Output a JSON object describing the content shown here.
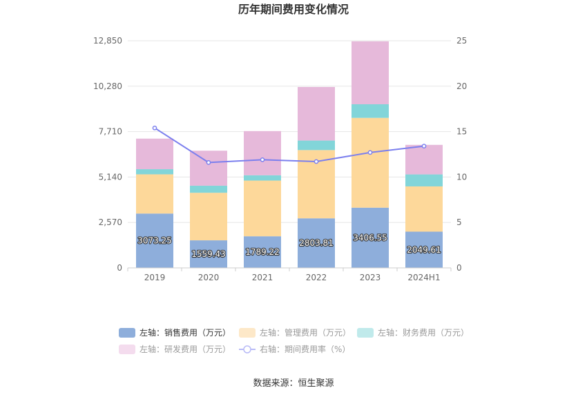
{
  "chart_data": {
    "type": "bar",
    "stacked": true,
    "title": "历年期间费用变化情况",
    "categories": [
      "2019",
      "2020",
      "2021",
      "2022",
      "2023",
      "2024H1"
    ],
    "series": [
      {
        "name": "左轴：销售费用（万元）",
        "axis": "left",
        "color": "#8eaedb",
        "values": [
          3073.25,
          1559.43,
          1789.22,
          2803.81,
          3406.55,
          2049.61
        ],
        "show_labels": true
      },
      {
        "name": "左轴：管理费用（万元）",
        "axis": "left",
        "color": "#fdd89a",
        "values": [
          2220,
          2690,
          3150,
          3860,
          5080,
          2560
        ]
      },
      {
        "name": "左轴：财务费用（万元）",
        "axis": "left",
        "color": "#82d5d9",
        "values": [
          290,
          400,
          300,
          540,
          770,
          680
        ]
      },
      {
        "name": "左轴：研发费用（万元）",
        "axis": "left",
        "color": "#e6b9da",
        "values": [
          1730,
          1980,
          2500,
          3030,
          3560,
          1670
        ]
      },
      {
        "name": "右轴：期间费用率（%）",
        "axis": "right",
        "type": "line",
        "color": "#7b7fee",
        "values": [
          15.4,
          11.6,
          11.9,
          11.7,
          12.7,
          13.4
        ]
      }
    ],
    "left_axis": {
      "ticks": [
        "0",
        "2,570",
        "5,140",
        "7,710",
        "10,280",
        "12,850"
      ],
      "ylim": [
        0,
        12850
      ]
    },
    "right_axis": {
      "ticks": [
        "0",
        "5",
        "10",
        "15",
        "20",
        "25"
      ],
      "ylim": [
        0,
        25
      ]
    },
    "grid": true,
    "legend_position": "bottom"
  },
  "legend_items": [
    {
      "label": "左轴：销售费用（万元）",
      "color": "#8eaedb",
      "kind": "rect",
      "dim": false
    },
    {
      "label": "左轴：管理费用（万元）",
      "color": "#fde8c8",
      "kind": "rect",
      "dim": true
    },
    {
      "label": "左轴：财务费用（万元）",
      "color": "#c0eaeb",
      "kind": "rect",
      "dim": true
    },
    {
      "label": "左轴：研发费用（万元）",
      "color": "#f4dcee",
      "kind": "rect",
      "dim": true
    },
    {
      "label": "右轴：期间费用率（%）",
      "color": "#b8baf7",
      "kind": "line",
      "dim": true
    }
  ],
  "source_text": "数据来源：恒生聚源"
}
